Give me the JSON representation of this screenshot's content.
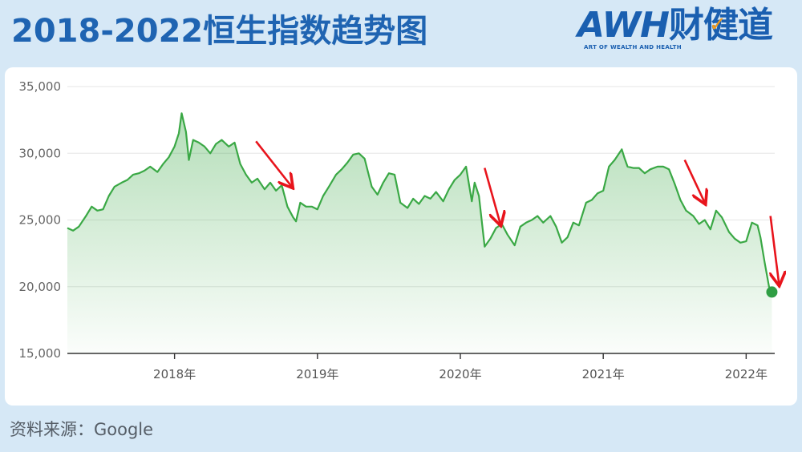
{
  "header": {
    "title": "2018-2022恒生指数趋势图"
  },
  "logo": {
    "brand_latin": "AWH",
    "brand_cn": "财健道",
    "tagline": "ART OF WEALTH AND HEALTH"
  },
  "footer": {
    "source": "资料来源：Google"
  },
  "colors": {
    "background": "#d6e8f6",
    "title": "#1f64b2",
    "line": "#3aa845",
    "arrow": "#e8141c",
    "end_marker": "#2f9e44"
  },
  "chart_data": {
    "type": "area",
    "title": "2018-2022恒生指数趋势图",
    "xlabel": "",
    "ylabel": "",
    "ylim": [
      15000,
      35000
    ],
    "xlim": [
      2017.25,
      2022.2
    ],
    "y_ticks": [
      {
        "value": 15000,
        "label": "15,000"
      },
      {
        "value": 20000,
        "label": "20,000"
      },
      {
        "value": 25000,
        "label": "25,000"
      },
      {
        "value": 30000,
        "label": "30,000"
      },
      {
        "value": 35000,
        "label": "35,000"
      }
    ],
    "x_ticks": [
      {
        "value": 2018.0,
        "label": "2018年"
      },
      {
        "value": 2019.0,
        "label": "2019年"
      },
      {
        "value": 2020.0,
        "label": "2020年"
      },
      {
        "value": 2021.0,
        "label": "2021年"
      },
      {
        "value": 2022.0,
        "label": "2022年"
      }
    ],
    "grid": true,
    "series": [
      {
        "points": [
          [
            2017.25,
            24400
          ],
          [
            2017.29,
            24200
          ],
          [
            2017.33,
            24500
          ],
          [
            2017.38,
            25300
          ],
          [
            2017.42,
            26000
          ],
          [
            2017.46,
            25700
          ],
          [
            2017.5,
            25800
          ],
          [
            2017.54,
            26800
          ],
          [
            2017.58,
            27500
          ],
          [
            2017.63,
            27800
          ],
          [
            2017.67,
            28000
          ],
          [
            2017.71,
            28400
          ],
          [
            2017.75,
            28500
          ],
          [
            2017.79,
            28700
          ],
          [
            2017.83,
            29000
          ],
          [
            2017.88,
            28600
          ],
          [
            2017.92,
            29200
          ],
          [
            2017.96,
            29700
          ],
          [
            2018.0,
            30500
          ],
          [
            2018.03,
            31500
          ],
          [
            2018.05,
            33000
          ],
          [
            2018.08,
            31600
          ],
          [
            2018.1,
            29500
          ],
          [
            2018.13,
            31000
          ],
          [
            2018.17,
            30800
          ],
          [
            2018.21,
            30500
          ],
          [
            2018.25,
            30000
          ],
          [
            2018.29,
            30700
          ],
          [
            2018.33,
            31000
          ],
          [
            2018.38,
            30500
          ],
          [
            2018.42,
            30800
          ],
          [
            2018.46,
            29200
          ],
          [
            2018.5,
            28400
          ],
          [
            2018.54,
            27800
          ],
          [
            2018.58,
            28100
          ],
          [
            2018.63,
            27300
          ],
          [
            2018.67,
            27800
          ],
          [
            2018.71,
            27200
          ],
          [
            2018.75,
            27600
          ],
          [
            2018.79,
            26000
          ],
          [
            2018.83,
            25200
          ],
          [
            2018.85,
            24900
          ],
          [
            2018.88,
            26300
          ],
          [
            2018.92,
            26000
          ],
          [
            2018.96,
            26000
          ],
          [
            2019.0,
            25800
          ],
          [
            2019.04,
            26800
          ],
          [
            2019.08,
            27500
          ],
          [
            2019.13,
            28400
          ],
          [
            2019.17,
            28800
          ],
          [
            2019.21,
            29300
          ],
          [
            2019.25,
            29900
          ],
          [
            2019.29,
            30000
          ],
          [
            2019.33,
            29600
          ],
          [
            2019.38,
            27500
          ],
          [
            2019.42,
            26900
          ],
          [
            2019.46,
            27800
          ],
          [
            2019.5,
            28500
          ],
          [
            2019.54,
            28400
          ],
          [
            2019.58,
            26300
          ],
          [
            2019.63,
            25900
          ],
          [
            2019.67,
            26600
          ],
          [
            2019.71,
            26200
          ],
          [
            2019.75,
            26800
          ],
          [
            2019.79,
            26600
          ],
          [
            2019.83,
            27100
          ],
          [
            2019.88,
            26400
          ],
          [
            2019.92,
            27300
          ],
          [
            2019.96,
            28000
          ],
          [
            2020.0,
            28400
          ],
          [
            2020.04,
            29000
          ],
          [
            2020.08,
            26400
          ],
          [
            2020.1,
            27800
          ],
          [
            2020.13,
            26800
          ],
          [
            2020.17,
            23000
          ],
          [
            2020.21,
            23600
          ],
          [
            2020.25,
            24400
          ],
          [
            2020.29,
            24700
          ],
          [
            2020.33,
            23900
          ],
          [
            2020.38,
            23100
          ],
          [
            2020.42,
            24500
          ],
          [
            2020.46,
            24800
          ],
          [
            2020.5,
            25000
          ],
          [
            2020.54,
            25300
          ],
          [
            2020.58,
            24800
          ],
          [
            2020.63,
            25300
          ],
          [
            2020.67,
            24500
          ],
          [
            2020.71,
            23300
          ],
          [
            2020.75,
            23700
          ],
          [
            2020.79,
            24800
          ],
          [
            2020.83,
            24600
          ],
          [
            2020.88,
            26300
          ],
          [
            2020.92,
            26500
          ],
          [
            2020.96,
            27000
          ],
          [
            2021.0,
            27200
          ],
          [
            2021.04,
            29000
          ],
          [
            2021.08,
            29500
          ],
          [
            2021.13,
            30300
          ],
          [
            2021.15,
            29600
          ],
          [
            2021.17,
            29000
          ],
          [
            2021.21,
            28900
          ],
          [
            2021.25,
            28900
          ],
          [
            2021.29,
            28500
          ],
          [
            2021.33,
            28800
          ],
          [
            2021.38,
            29000
          ],
          [
            2021.42,
            29000
          ],
          [
            2021.46,
            28800
          ],
          [
            2021.5,
            27700
          ],
          [
            2021.54,
            26500
          ],
          [
            2021.58,
            25700
          ],
          [
            2021.63,
            25300
          ],
          [
            2021.67,
            24700
          ],
          [
            2021.71,
            25000
          ],
          [
            2021.75,
            24300
          ],
          [
            2021.79,
            25700
          ],
          [
            2021.83,
            25200
          ],
          [
            2021.88,
            24100
          ],
          [
            2021.92,
            23600
          ],
          [
            2021.96,
            23300
          ],
          [
            2022.0,
            23400
          ],
          [
            2022.04,
            24800
          ],
          [
            2022.08,
            24600
          ],
          [
            2022.1,
            23700
          ],
          [
            2022.13,
            21800
          ],
          [
            2022.16,
            20000
          ],
          [
            2022.18,
            19600
          ]
        ],
        "end_marker": [
          2022.18,
          19600
        ]
      }
    ],
    "annotations": [
      {
        "type": "arrow",
        "from": [
          2018.57,
          30900
        ],
        "to": [
          2018.82,
          27500
        ]
      },
      {
        "type": "arrow",
        "from": [
          2020.17,
          28900
        ],
        "to": [
          2020.28,
          24700
        ]
      },
      {
        "type": "arrow",
        "from": [
          2021.57,
          29500
        ],
        "to": [
          2021.71,
          26300
        ]
      },
      {
        "type": "arrow",
        "from": [
          2022.17,
          25300
        ],
        "to": [
          2022.23,
          20200
        ]
      }
    ]
  }
}
